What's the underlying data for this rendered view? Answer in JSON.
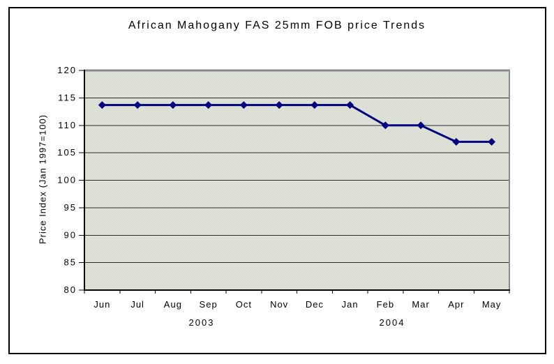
{
  "chart_data": {
    "type": "line",
    "title": "African Mahogany FAS 25mm FOB price Trends",
    "ylabel": "Price Index (Jan 1997=100)",
    "xlabel": "",
    "categories": [
      "Jun",
      "Jul",
      "Aug",
      "Sep",
      "Oct",
      "Nov",
      "Dec",
      "Jan",
      "Feb",
      "Mar",
      "Apr",
      "May"
    ],
    "year_labels": [
      "2003",
      "2004"
    ],
    "series": [
      {
        "values": [
          113.7,
          113.7,
          113.7,
          113.7,
          113.7,
          113.7,
          113.7,
          113.7,
          110,
          110,
          107,
          107
        ]
      }
    ],
    "ylim": [
      80,
      120
    ],
    "ytick_step": 5,
    "grid": true,
    "legend_position": "none",
    "line_color": "#000080",
    "marker_shape": "diamond",
    "plot_background": "#e0e3da",
    "gridline_color": "#2b2b2b",
    "plot_border_color": "#8a8a8a"
  }
}
